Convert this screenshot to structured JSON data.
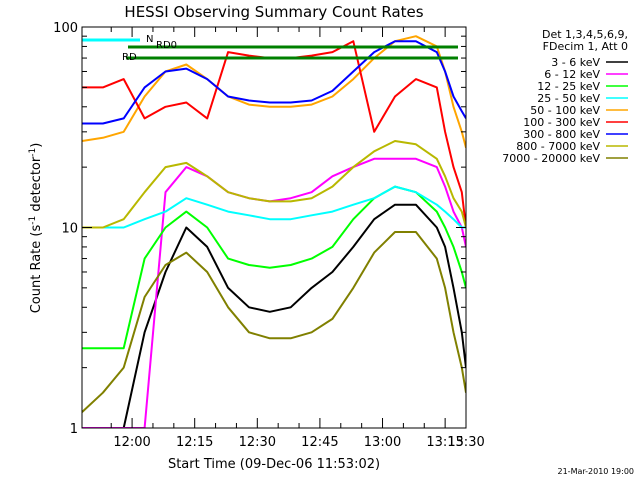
{
  "chart_data": {
    "type": "line",
    "title": "HESSI Observing Summary Count Rates",
    "xlabel": "Start Time (09-Dec-06 11:53:02)",
    "ylabel_parts": [
      "Count Rate (s",
      "-1",
      " detector",
      "-1",
      ")"
    ],
    "y_scale": "log",
    "ylim": [
      1,
      100
    ],
    "y_ticks": [
      {
        "value": 1,
        "label": "1"
      },
      {
        "value": 10,
        "label": "10"
      },
      {
        "value": 100,
        "label": "100"
      }
    ],
    "xlim_min": [
      -5,
      87
    ],
    "x_ticks": [
      {
        "min": 7,
        "label": "12:00"
      },
      {
        "min": 22,
        "label": "12:15"
      },
      {
        "min": 37,
        "label": "12:30"
      },
      {
        "min": 52,
        "label": "12:45"
      },
      {
        "min": 67,
        "label": "13:00"
      },
      {
        "min": 82,
        "label": "13:15"
      },
      {
        "min": 97,
        "label": "13:30"
      }
    ],
    "legend_header": [
      "Det 1,3,4,5,6,9,",
      "FDecim 1, Att 0"
    ],
    "series": [
      {
        "name": "3 - 6 keV",
        "color": "#000000",
        "x": [
          -5,
          0,
          5,
          10,
          15,
          20,
          25,
          30,
          35,
          40,
          45,
          50,
          55,
          60,
          65,
          70,
          75,
          80,
          82,
          84,
          86,
          87
        ],
        "y": [
          1.0,
          1.0,
          1.0,
          3.0,
          6.0,
          10.0,
          8.0,
          5.0,
          4.0,
          3.8,
          4.0,
          5.0,
          6.0,
          8.0,
          11.0,
          13.0,
          13.0,
          10.0,
          8.0,
          5.0,
          3.0,
          2.0
        ]
      },
      {
        "name": "6 - 12 keV",
        "color": "#ff00ff",
        "x": [
          -5,
          0,
          5,
          10,
          15,
          20,
          25,
          30,
          35,
          40,
          45,
          50,
          55,
          60,
          65,
          70,
          75,
          80,
          82,
          84,
          86,
          87
        ],
        "y": [
          1.0,
          1.0,
          1.0,
          1.0,
          15.0,
          20.0,
          18.0,
          15.0,
          14.0,
          13.5,
          14.0,
          15.0,
          18.0,
          20.0,
          22.0,
          22.0,
          22.0,
          20.0,
          16.0,
          12.0,
          10.0,
          8.0
        ]
      },
      {
        "name": "12 - 25 keV",
        "color": "#00ff00",
        "x": [
          -5,
          0,
          5,
          10,
          15,
          20,
          25,
          30,
          35,
          40,
          45,
          50,
          55,
          60,
          65,
          70,
          75,
          80,
          82,
          84,
          86,
          87
        ],
        "y": [
          2.5,
          2.5,
          2.5,
          7.0,
          10.0,
          12.0,
          10.0,
          7.0,
          6.5,
          6.3,
          6.5,
          7.0,
          8.0,
          11.0,
          14.0,
          16.0,
          15.0,
          12.0,
          10.0,
          8.0,
          6.0,
          5.0
        ]
      },
      {
        "name": "25 - 50 keV",
        "color": "#00ffff",
        "x": [
          -5,
          0,
          5,
          10,
          15,
          20,
          25,
          30,
          35,
          40,
          45,
          50,
          55,
          60,
          65,
          70,
          75,
          80,
          82,
          84,
          86,
          87
        ],
        "y": [
          10.0,
          10.0,
          10.0,
          11.0,
          12.0,
          14.0,
          13.0,
          12.0,
          11.5,
          11.0,
          11.0,
          11.5,
          12.0,
          13.0,
          14.0,
          16.0,
          15.0,
          13.0,
          12.0,
          11.0,
          10.0,
          10.0
        ]
      },
      {
        "name": "50 - 100 keV",
        "color": "#ffa500",
        "x": [
          -5,
          0,
          5,
          10,
          15,
          20,
          25,
          30,
          35,
          40,
          45,
          50,
          55,
          60,
          65,
          70,
          75,
          80,
          82,
          84,
          86,
          87
        ],
        "y": [
          27.0,
          28.0,
          30.0,
          45.0,
          60.0,
          65.0,
          55.0,
          45.0,
          41.0,
          40.0,
          40.0,
          41.0,
          45.0,
          55.0,
          70.0,
          85.0,
          90.0,
          80.0,
          60.0,
          40.0,
          30.0,
          25.0
        ]
      },
      {
        "name": "100 - 300 keV",
        "color": "#ff0000",
        "x": [
          -5,
          0,
          5,
          10,
          15,
          20,
          25,
          30,
          35,
          40,
          45,
          50,
          55,
          60,
          65,
          70,
          75,
          80,
          82,
          84,
          86,
          87
        ],
        "y": [
          50.0,
          50.0,
          55.0,
          35.0,
          40.0,
          42.0,
          35.0,
          75.0,
          72.0,
          70.0,
          70.0,
          72.0,
          75.0,
          85.0,
          30.0,
          45.0,
          55.0,
          50.0,
          30.0,
          20.0,
          15.0,
          10.0
        ]
      },
      {
        "name": "300 - 800 keV",
        "color": "#0000ff",
        "x": [
          -5,
          0,
          5,
          10,
          15,
          20,
          25,
          30,
          35,
          40,
          45,
          50,
          55,
          60,
          65,
          70,
          75,
          80,
          82,
          84,
          86,
          87
        ],
        "y": [
          33.0,
          33.0,
          35.0,
          50.0,
          60.0,
          62.0,
          55.0,
          45.0,
          43.0,
          42.0,
          42.0,
          43.0,
          48.0,
          60.0,
          75.0,
          85.0,
          85.0,
          75.0,
          60.0,
          45.0,
          38.0,
          35.0
        ]
      },
      {
        "name": "800 - 7000 keV",
        "color": "#b8b800",
        "x": [
          -5,
          0,
          5,
          10,
          15,
          20,
          25,
          30,
          35,
          40,
          45,
          50,
          55,
          60,
          65,
          70,
          75,
          80,
          82,
          84,
          86,
          87
        ],
        "y": [
          10.0,
          10.0,
          11.0,
          15.0,
          20.0,
          21.0,
          18.0,
          15.0,
          14.0,
          13.5,
          13.5,
          14.0,
          16.0,
          20.0,
          24.0,
          27.0,
          26.0,
          22.0,
          18.0,
          14.0,
          12.0,
          10.0
        ]
      },
      {
        "name": "7000 - 20000 keV",
        "color": "#808000",
        "x": [
          -5,
          0,
          5,
          10,
          15,
          20,
          25,
          30,
          35,
          40,
          45,
          50,
          55,
          60,
          65,
          70,
          75,
          80,
          82,
          84,
          86,
          87
        ],
        "y": [
          1.2,
          1.5,
          2.0,
          4.5,
          6.5,
          7.5,
          6.0,
          4.0,
          3.0,
          2.8,
          2.8,
          3.0,
          3.5,
          5.0,
          7.5,
          9.5,
          9.5,
          7.0,
          5.0,
          3.0,
          2.0,
          1.5
        ]
      }
    ],
    "markers": [
      {
        "label": "RD0",
        "color": "#008000"
      },
      {
        "label": "RD",
        "color": "#008000"
      },
      {
        "label": "N",
        "color": "#00ffff"
      }
    ],
    "grid": false,
    "legend_position": "right"
  },
  "timestamp": "21-Mar-2010 19:00"
}
